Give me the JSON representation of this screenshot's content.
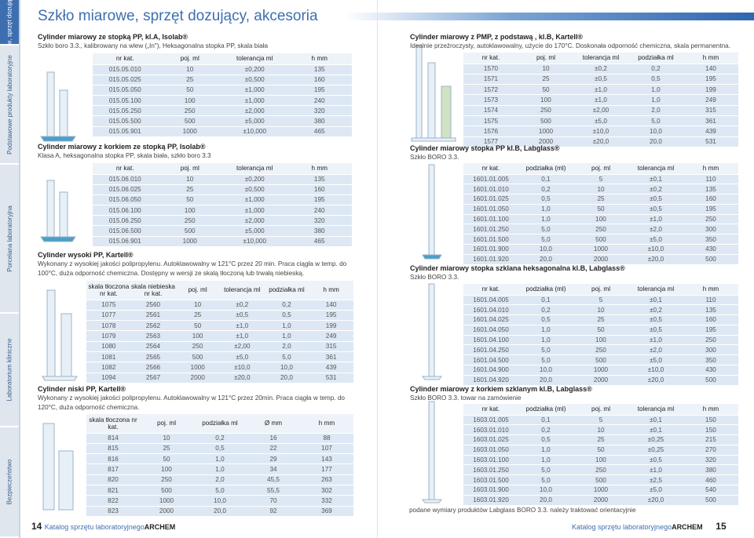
{
  "side_tabs": [
    "Szkło miarowe, sprzęt dozujący, akcesoria",
    "Podstawowe produkty laboratoryjne",
    "Porcelana laboratoryjna",
    "Laboratorium kliniczne",
    "Bezpieczeństwo"
  ],
  "title": "Szkło miarowe, sprzęt dozujący, akcesoria",
  "sections": [
    {
      "title": "Cylinder miarowy ze stopką PP, kl.A, Isolab®",
      "description": "Szkło boro 3.3., kalibrowany na wlew („In\"), Heksagonalna stopka PP, skala biała",
      "headers": [
        "nr kat.",
        "poj. ml",
        "tolerancja ml",
        "h mm"
      ],
      "rows": [
        [
          "015.05.010",
          "10",
          "±0,200",
          "135"
        ],
        [
          "015.05.025",
          "25",
          "±0,500",
          "160"
        ],
        [
          "015.05.050",
          "50",
          "±1,000",
          "195"
        ],
        [
          "015.05.100",
          "100",
          "±1,000",
          "240"
        ],
        [
          "015.05.250",
          "250",
          "±2,000",
          "320"
        ],
        [
          "015.05.500",
          "500",
          "±5,000",
          "380"
        ],
        [
          "015.05.901",
          "1000",
          "±10,000",
          "465"
        ]
      ]
    },
    {
      "title": "Cylinder miarowy z korkiem ze stopką PP, Isolab®",
      "description": "Klasa A, heksagonalna stopka PP, skala biała, szkło boro 3.3",
      "headers": [
        "nr kat.",
        "poj. ml",
        "tolerancja ml",
        "h mm"
      ],
      "rows": [
        [
          "015.06.010",
          "10",
          "±0,200",
          "135"
        ],
        [
          "015.06.025",
          "25",
          "±0,500",
          "160"
        ],
        [
          "015.06.050",
          "50",
          "±1,000",
          "195"
        ],
        [
          "015.06.100",
          "100",
          "±1,000",
          "240"
        ],
        [
          "015.06.250",
          "250",
          "±2,000",
          "320"
        ],
        [
          "015.06.500",
          "500",
          "±5,000",
          "380"
        ],
        [
          "015.06.901",
          "1000",
          "±10,000",
          "465"
        ]
      ]
    },
    {
      "title": "Cylinder wysoki PP, Kartell®",
      "description": "Wykonany z wysokiej jakości polipropylenu. Autoklawowalny w 121°C przez 20 min. Praca ciągła w temp. do 100°C, duża odporność chemiczna. Dostępny w wersji ze skalą tłoczoną lub trwałą niebieską.",
      "headers": [
        "skala tłoczona nr kat.",
        "skala niebieska nr kat.",
        "poj. ml",
        "tolerancja ml",
        "podziałka ml",
        "h mm"
      ],
      "rows": [
        [
          "1075",
          "2560",
          "10",
          "±0,2",
          "0,2",
          "140"
        ],
        [
          "1077",
          "2561",
          "25",
          "±0,5",
          "0,5",
          "195"
        ],
        [
          "1078",
          "2562",
          "50",
          "±1,0",
          "1,0",
          "199"
        ],
        [
          "1079",
          "2563",
          "100",
          "±1,0",
          "1,0",
          "249"
        ],
        [
          "1080",
          "2564",
          "250",
          "±2,00",
          "2,0",
          "315"
        ],
        [
          "1081",
          "2565",
          "500",
          "±5,0",
          "5,0",
          "361"
        ],
        [
          "1082",
          "2566",
          "1000",
          "±10,0",
          "10,0",
          "439"
        ],
        [
          "1094",
          "2567",
          "2000",
          "±20,0",
          "20,0",
          "531"
        ]
      ]
    },
    {
      "title": "Cylinder niski PP, Kartell®",
      "description": "Wykonany z wysokiej jakości polipropylenu. Autoklawowalny w 121°C przez 20min. Praca ciągła w temp. do 120°C, duża odporność chemiczna.",
      "headers": [
        "skala tłoczona nr kat.",
        "poj. ml",
        "podziałka ml",
        "Ø mm",
        "h mm"
      ],
      "rows": [
        [
          "814",
          "10",
          "0,2",
          "16",
          "88"
        ],
        [
          "815",
          "25",
          "0,5",
          "22",
          "107"
        ],
        [
          "816",
          "50",
          "1,0",
          "29",
          "143"
        ],
        [
          "817",
          "100",
          "1,0",
          "34",
          "177"
        ],
        [
          "820",
          "250",
          "2,0",
          "45,5",
          "263"
        ],
        [
          "821",
          "500",
          "5,0",
          "55,5",
          "302"
        ],
        [
          "822",
          "1000",
          "10,0",
          "70",
          "332"
        ],
        [
          "823",
          "2000",
          "20,0",
          "92",
          "369"
        ]
      ]
    },
    {
      "title": "Cylinder miarowy z PMP, z podstawą , kl.B, Kartell®",
      "description": "Idealnie przeźroczysty, autoklawowalny, użycie do 170°C. Doskonała odporność chemiczna, skala permanentna.",
      "headers": [
        "nr kat.",
        "poj. ml",
        "tolerancja ml",
        "podziałka ml",
        "h mm"
      ],
      "rows": [
        [
          "1570",
          "10",
          "±0,2",
          "0,2",
          "140"
        ],
        [
          "1571",
          "25",
          "±0,5",
          "0,5",
          "195"
        ],
        [
          "1572",
          "50",
          "±1,0",
          "1,0",
          "199"
        ],
        [
          "1573",
          "100",
          "±1,0",
          "1,0",
          "249"
        ],
        [
          "1574",
          "250",
          "±2,00",
          "2,0",
          "315"
        ],
        [
          "1575",
          "500",
          "±5,0",
          "5,0",
          "361"
        ],
        [
          "1576",
          "1000",
          "±10,0",
          "10,0",
          "439"
        ],
        [
          "1577",
          "2000",
          "±20,0",
          "20,0",
          "531"
        ]
      ]
    },
    {
      "title": "Cylinder miarowy stopka PP kl.B, Labglass®",
      "description": "Szkło BORO 3.3.",
      "headers": [
        "nr kat.",
        "podziałka (ml)",
        "poj. ml",
        "tolerancja ml",
        "h mm"
      ],
      "rows": [
        [
          "1601.01.005",
          "0,1",
          "5",
          "±0,1",
          "110"
        ],
        [
          "1601.01.010",
          "0,2",
          "10",
          "±0,2",
          "135"
        ],
        [
          "1601.01.025",
          "0,5",
          "25",
          "±0,5",
          "160"
        ],
        [
          "1601.01.050",
          "1,0",
          "50",
          "±0,5",
          "195"
        ],
        [
          "1601.01.100",
          "1,0",
          "100",
          "±1,0",
          "250"
        ],
        [
          "1601.01.250",
          "5,0",
          "250",
          "±2,0",
          "300"
        ],
        [
          "1601.01.500",
          "5,0",
          "500",
          "±5,0",
          "350"
        ],
        [
          "1601.01.900",
          "10,0",
          "1000",
          "±10,0",
          "430"
        ],
        [
          "1601.01.920",
          "20,0",
          "2000",
          "±20,0",
          "500"
        ]
      ]
    },
    {
      "title": "Cylinder miarowy stopka szklana heksagonalna kl.B, Labglass®",
      "description": "Szkło BORO 3.3.",
      "headers": [
        "nr kat.",
        "podziałka (ml)",
        "poj. ml",
        "tolerancja ml",
        "h mm"
      ],
      "rows": [
        [
          "1601.04.005",
          "0,1",
          "5",
          "±0,1",
          "110"
        ],
        [
          "1601.04.010",
          "0,2",
          "10",
          "±0,2",
          "135"
        ],
        [
          "1601.04.025",
          "0,5",
          "25",
          "±0,5",
          "160"
        ],
        [
          "1601.04.050",
          "1,0",
          "50",
          "±0,5",
          "195"
        ],
        [
          "1601.04.100",
          "1,0",
          "100",
          "±1,0",
          "250"
        ],
        [
          "1601.04.250",
          "5,0",
          "250",
          "±2,0",
          "300"
        ],
        [
          "1601.04.500",
          "5,0",
          "500",
          "±5,0",
          "350"
        ],
        [
          "1601.04.900",
          "10,0",
          "1000",
          "±10,0",
          "430"
        ],
        [
          "1601.04.920",
          "20,0",
          "2000",
          "±20,0",
          "500"
        ]
      ]
    },
    {
      "title": "Cylinder miarowy z korkiem szklanym kl.B, Labglass®",
      "description": "Szkło BORO 3.3. towar na zamówienie",
      "headers": [
        "nr kat.",
        "podziałka (ml)",
        "poj. ml",
        "tolerancja ml",
        "h mm"
      ],
      "rows": [
        [
          "1603.01.005",
          "0,1",
          "5",
          "±0,1",
          "150"
        ],
        [
          "1603.01.010",
          "0,2",
          "10",
          "±0,1",
          "150"
        ],
        [
          "1603.01.025",
          "0,5",
          "25",
          "±0,25",
          "215"
        ],
        [
          "1603.01.050",
          "1,0",
          "50",
          "±0,25",
          "270"
        ],
        [
          "1603.01.100",
          "1,0",
          "100",
          "±0,5",
          "320"
        ],
        [
          "1603.01.250",
          "5,0",
          "250",
          "±1,0",
          "380"
        ],
        [
          "1603.01.500",
          "5,0",
          "500",
          "±2,5",
          "460"
        ],
        [
          "1603.01.900",
          "10,0",
          "1000",
          "±5,0",
          "540"
        ],
        [
          "1603.01.920",
          "20,0",
          "2000",
          "±20,0",
          "500"
        ]
      ]
    }
  ],
  "note": "podane wymiary produktów Labglass BORO 3.3. należy traktować orientacyjnie",
  "footer": {
    "left_page": "14",
    "text": "Katalog sprzętu laboratoryjnego",
    "brand": "ARCHEM",
    "right_page": "15"
  }
}
